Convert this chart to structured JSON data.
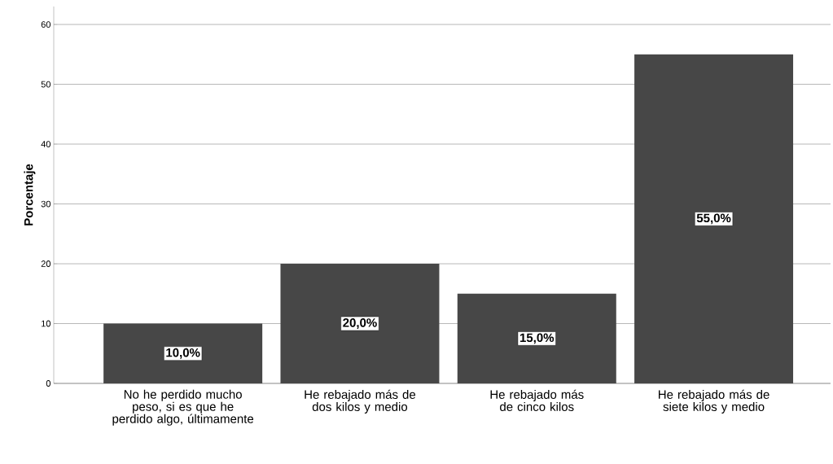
{
  "chart_data": {
    "type": "bar",
    "ylabel": "Porcentaje",
    "categories": [
      "No he perdido mucho peso, si es que he perdido algo, últimamente",
      "He rebajado más de dos kilos y medio",
      "He rebajado más de cinco kilos",
      "He rebajado más de siete kilos y medio"
    ],
    "values": [
      10,
      20,
      15,
      55
    ],
    "value_labels": [
      "10,0%",
      "20,0%",
      "15,0%",
      "55,0%"
    ],
    "color": "#474747",
    "ylim": [
      0,
      63
    ],
    "yticks": [
      0,
      10,
      20,
      30,
      40,
      50,
      60
    ],
    "grid": "y"
  }
}
